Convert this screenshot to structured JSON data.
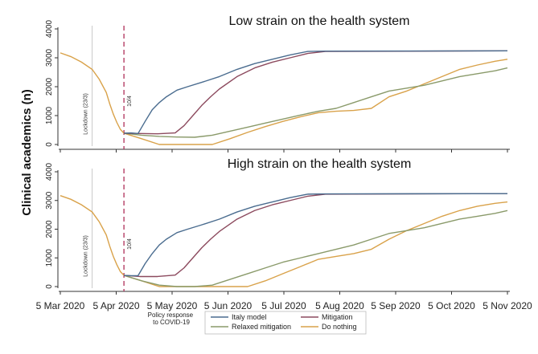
{
  "chart_data": {
    "type": "line",
    "ylabel": "Clinical academics (n)",
    "xlabel": "",
    "x_ticks": [
      "5 Mar 2020",
      "5 Apr 2020",
      "5 May 2020",
      "5 Jun 2020",
      "5 Jul 2020",
      "5 Aug 2020",
      "5 Sep 2020",
      "5 Oct 2020",
      "5 Nov 2020"
    ],
    "y_ticks": [
      0,
      1000,
      2000,
      3000,
      4000
    ],
    "ylim": [
      0,
      4000
    ],
    "x_unit": "days since 5 Mar 2020",
    "xlim": [
      0,
      253
    ],
    "legend": {
      "title": "Policy response to COVID-19",
      "placement": "bottom",
      "entries": [
        {
          "name": "Italy model",
          "color": "#4a6c8f"
        },
        {
          "name": "Mitigation",
          "color": "#8c4a5e"
        },
        {
          "name": "Relaxed mitigation",
          "color": "#8a9a6a"
        },
        {
          "name": "Do nothing",
          "color": "#d9a24a"
        }
      ]
    },
    "event_lines": [
      {
        "label": "Lockdown (23/3)",
        "x": 18,
        "style": "solid-grey"
      },
      {
        "label": "10/4",
        "x": 36,
        "style": "dashed-red"
      }
    ],
    "panels": [
      {
        "title": "Low strain on the health system",
        "pre_policy": {
          "x": [
            0,
            6,
            12,
            18,
            22,
            26,
            28,
            30,
            32,
            34,
            36
          ],
          "y": [
            3170,
            3040,
            2850,
            2600,
            2260,
            1800,
            1400,
            1050,
            760,
            520,
            390
          ]
        },
        "series": [
          {
            "name": "Italy model",
            "x": [
              36,
              40,
              44,
              48,
              52,
              56,
              60,
              66,
              72,
              80,
              90,
              100,
              110,
              120,
              130,
              140,
              150,
              253
            ],
            "y": [
              390,
              400,
              380,
              800,
              1200,
              1450,
              1650,
              1880,
              2000,
              2150,
              2350,
              2600,
              2800,
              2950,
              3100,
              3220,
              3230,
              3240
            ]
          },
          {
            "name": "Mitigation",
            "x": [
              36,
              45,
              55,
              65,
              70,
              75,
              80,
              85,
              90,
              100,
              110,
              120,
              130,
              140,
              150,
              253
            ],
            "y": [
              390,
              380,
              370,
              400,
              650,
              1000,
              1350,
              1650,
              1920,
              2350,
              2650,
              2850,
              3000,
              3150,
              3220,
              3240
            ]
          },
          {
            "name": "Relaxed mitigation",
            "x": [
              36,
              46,
              56,
              66,
              76,
              86,
              96,
              106,
              116,
              126,
              136,
              146,
              156,
              166,
              176,
              186,
              196,
              206,
              216,
              226,
              236,
              246,
              253
            ],
            "y": [
              390,
              320,
              280,
              260,
              250,
              320,
              460,
              600,
              740,
              880,
              1020,
              1150,
              1250,
              1450,
              1650,
              1850,
              1950,
              2050,
              2200,
              2350,
              2450,
              2550,
              2650
            ]
          },
          {
            "name": "Do nothing",
            "x": [
              36,
              46,
              56,
              66,
              76,
              86,
              96,
              106,
              116,
              126,
              136,
              146,
              156,
              166,
              176,
              186,
              196,
              206,
              216,
              226,
              236,
              246,
              253
            ],
            "y": [
              390,
              200,
              0,
              0,
              0,
              0,
              200,
              420,
              620,
              800,
              960,
              1100,
              1150,
              1180,
              1250,
              1650,
              1850,
              2100,
              2350,
              2600,
              2750,
              2880,
              2950
            ]
          }
        ]
      },
      {
        "title": "High strain on the health system",
        "pre_policy": {
          "x": [
            0,
            6,
            12,
            18,
            22,
            26,
            28,
            30,
            32,
            34,
            36
          ],
          "y": [
            3170,
            3040,
            2850,
            2600,
            2260,
            1800,
            1400,
            1050,
            760,
            520,
            390
          ]
        },
        "series": [
          {
            "name": "Italy model",
            "x": [
              36,
              40,
              44,
              48,
              52,
              56,
              60,
              66,
              72,
              80,
              90,
              100,
              110,
              120,
              130,
              140,
              150,
              253
            ],
            "y": [
              390,
              380,
              380,
              800,
              1150,
              1450,
              1650,
              1880,
              2000,
              2150,
              2350,
              2600,
              2800,
              2950,
              3100,
              3220,
              3230,
              3240
            ]
          },
          {
            "name": "Mitigation",
            "x": [
              36,
              45,
              55,
              65,
              70,
              75,
              80,
              85,
              90,
              100,
              110,
              120,
              130,
              140,
              150,
              253
            ],
            "y": [
              390,
              350,
              350,
              400,
              650,
              1000,
              1350,
              1650,
              1920,
              2350,
              2650,
              2850,
              3000,
              3150,
              3220,
              3240
            ]
          },
          {
            "name": "Relaxed mitigation",
            "x": [
              36,
              46,
              56,
              66,
              76,
              86,
              96,
              106,
              116,
              126,
              136,
              146,
              156,
              166,
              176,
              186,
              196,
              206,
              216,
              226,
              236,
              246,
              253
            ],
            "y": [
              390,
              200,
              50,
              0,
              0,
              50,
              250,
              450,
              650,
              850,
              1000,
              1150,
              1300,
              1450,
              1650,
              1850,
              1950,
              2050,
              2200,
              2350,
              2450,
              2550,
              2650
            ]
          },
          {
            "name": "Do nothing",
            "x": [
              36,
              46,
              56,
              66,
              76,
              86,
              96,
              106,
              116,
              126,
              136,
              146,
              156,
              166,
              176,
              186,
              196,
              206,
              216,
              226,
              236,
              246,
              253
            ],
            "y": [
              390,
              200,
              0,
              0,
              0,
              0,
              0,
              0,
              200,
              450,
              700,
              950,
              1050,
              1150,
              1300,
              1650,
              1950,
              2200,
              2450,
              2650,
              2800,
              2900,
              2950
            ]
          }
        ]
      }
    ]
  }
}
